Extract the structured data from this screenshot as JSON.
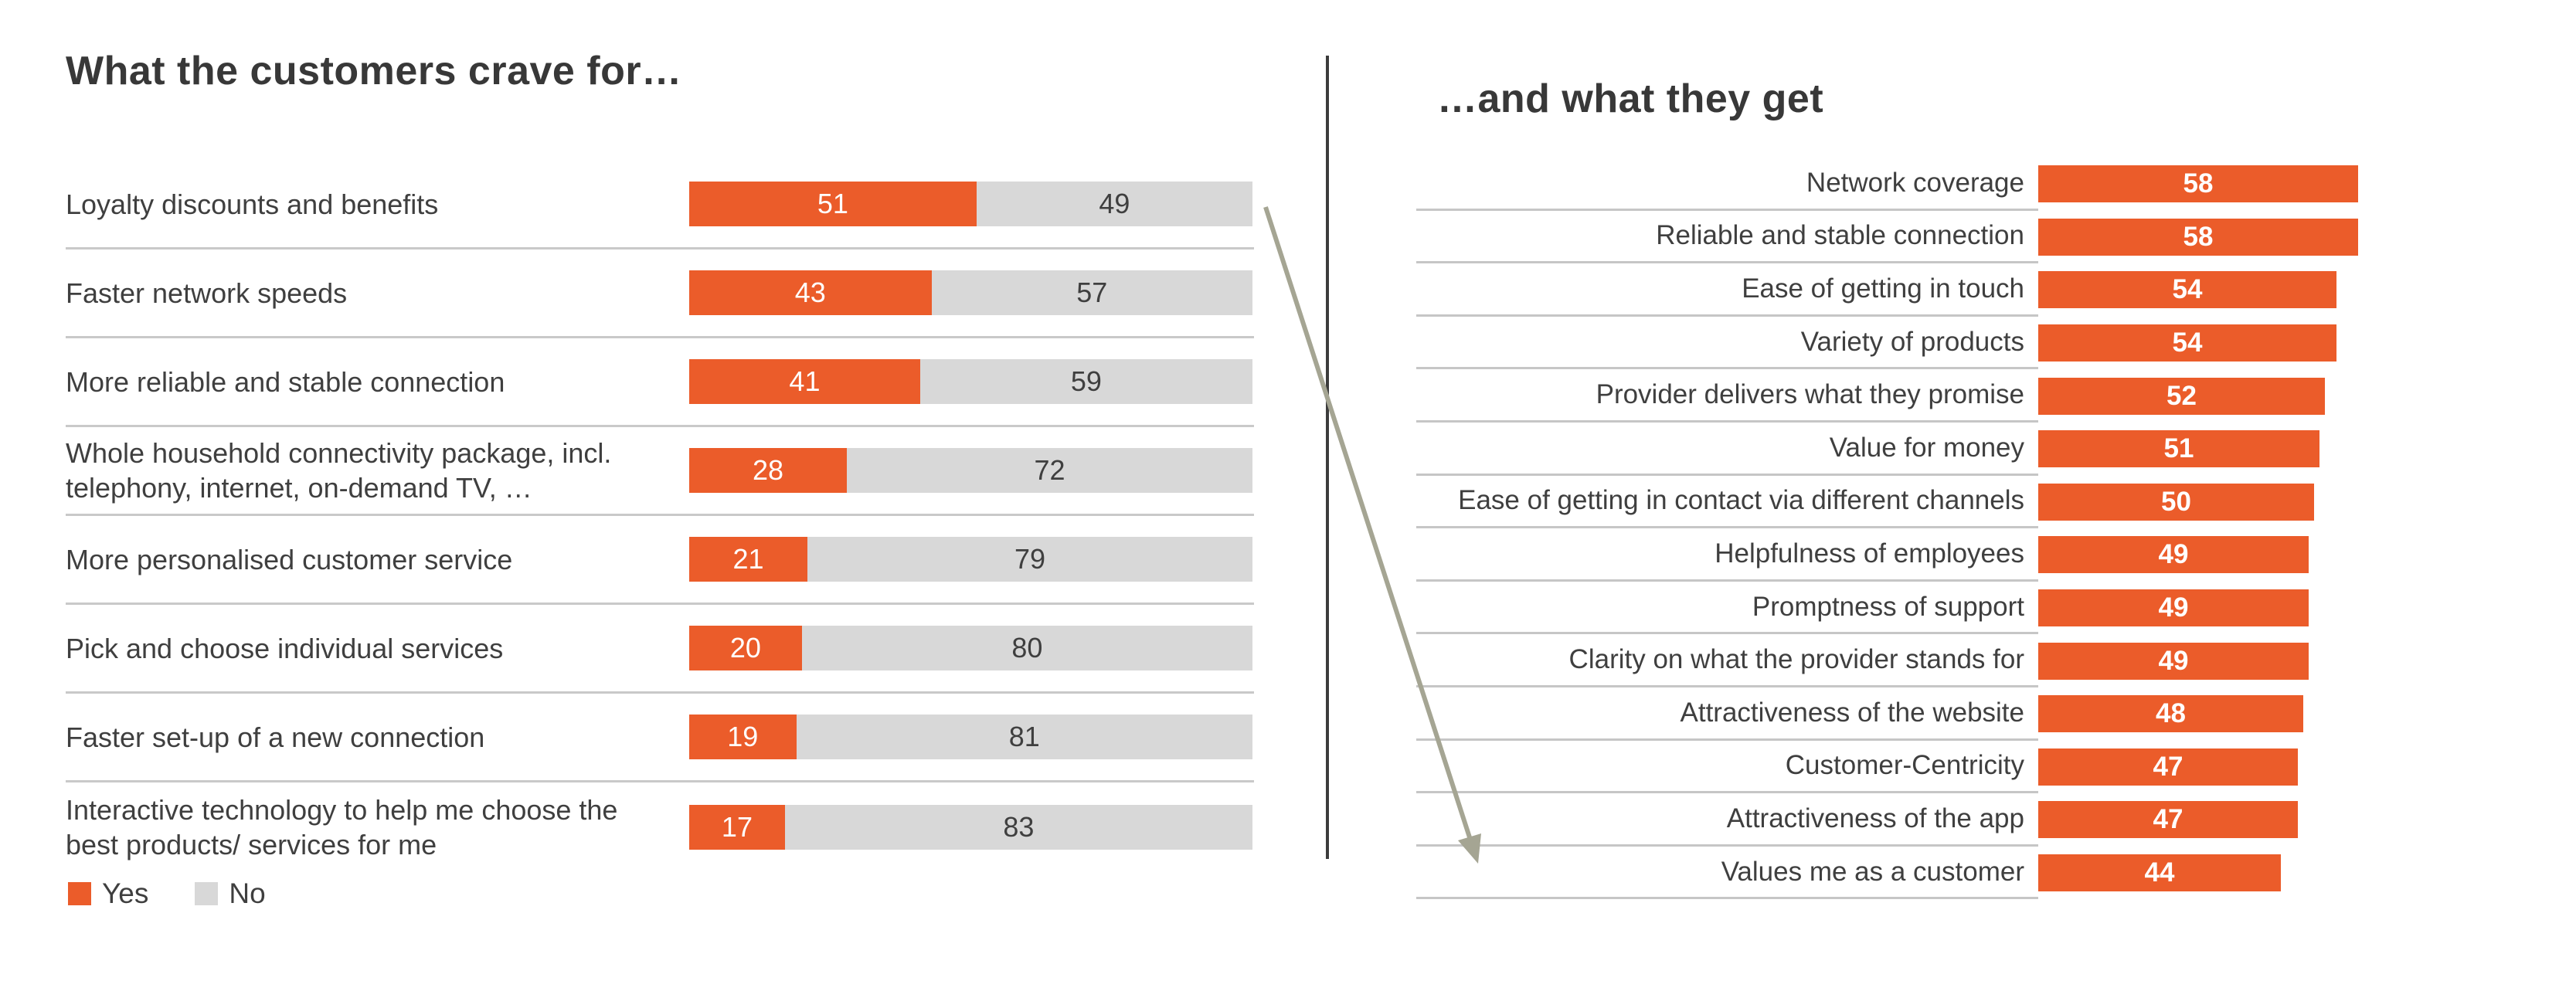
{
  "chart_data": [
    {
      "type": "bar",
      "subtype": "horizontal-stacked",
      "title": "What the customers crave for…",
      "categories": [
        "Loyalty discounts and benefits",
        "Faster network speeds",
        "More reliable and stable connection",
        "Whole household connectivity package, incl. telephony, internet, on-demand TV, …",
        "More personalised customer service",
        "Pick and choose individual services",
        "Faster set-up of a new connection",
        "Interactive technology to help me choose the best products/ services for me"
      ],
      "series": [
        {
          "name": "Yes",
          "values": [
            51,
            43,
            41,
            28,
            21,
            20,
            19,
            17
          ]
        },
        {
          "name": "No",
          "values": [
            49,
            57,
            59,
            72,
            79,
            80,
            81,
            83
          ]
        }
      ],
      "xlim": [
        0,
        100
      ],
      "data_labels": true,
      "grid": false,
      "legend_position": "bottom-left",
      "legend": {
        "items": [
          {
            "label": "Yes",
            "color": "#EB5C2A"
          },
          {
            "label": "No",
            "color": "#D8D8D8"
          }
        ]
      }
    },
    {
      "type": "bar",
      "subtype": "horizontal",
      "title": "…and what they get",
      "categories": [
        "Network coverage",
        "Reliable and stable connection",
        "Ease of getting in touch",
        "Variety of products",
        "Provider delivers what they promise",
        "Value for money",
        "Ease of getting in contact via different channels",
        "Helpfulness of employees",
        "Promptness of support",
        "Clarity on what the provider stands for",
        "Attractiveness of the website",
        "Customer-Centricity",
        "Attractiveness of the app",
        "Values me as a customer"
      ],
      "values": [
        58,
        58,
        54,
        54,
        52,
        51,
        50,
        49,
        49,
        49,
        48,
        47,
        47,
        44
      ],
      "xlim": [
        0,
        100
      ],
      "data_labels": true,
      "grid": false
    }
  ],
  "annotations": [
    {
      "shape": "arrow",
      "from_chart": "left",
      "from_row": "Loyalty discounts and benefits",
      "to_chart": "right",
      "to_row": "Values me as a customer"
    }
  ],
  "colors": {
    "bar_orange": "#EB5C2A",
    "bar_gray": "#D8D8D8",
    "value_on_orange": "#FFFFFF",
    "value_on_gray": "#3F3F3F",
    "title_text": "#383838",
    "body_text": "#3F3F3F",
    "row_separator": "#C9C9C9",
    "panel_divider": "#3C3C3C",
    "arrow": "#A5A593",
    "background": "#FFFFFF"
  }
}
